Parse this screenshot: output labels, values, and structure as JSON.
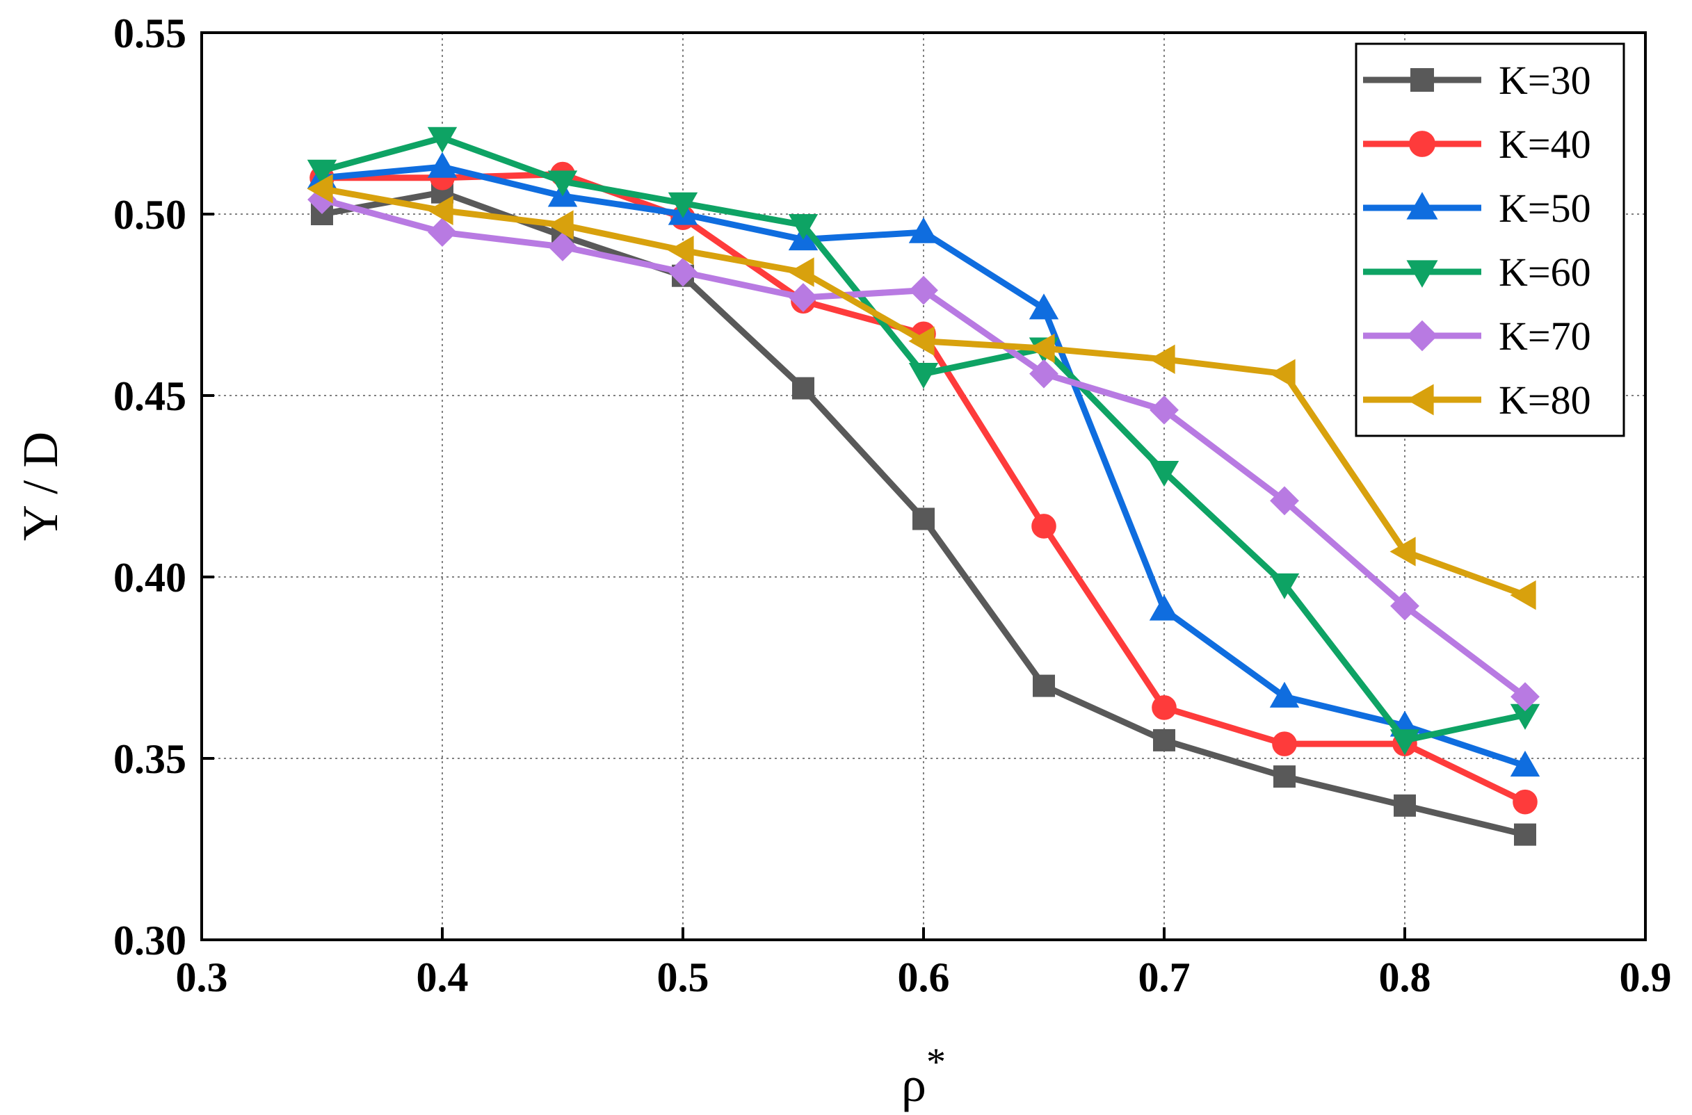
{
  "chart_data": {
    "type": "line",
    "title": "",
    "xlabel": "ρ",
    "xlabel_superscript": "*",
    "ylabel": "Y / D",
    "xlim": [
      0.3,
      0.9
    ],
    "ylim": [
      0.3,
      0.55
    ],
    "xticks": [
      0.3,
      0.4,
      0.5,
      0.6,
      0.7,
      0.8,
      0.9
    ],
    "xtick_labels": [
      "0.3",
      "0.4",
      "0.5",
      "0.6",
      "0.7",
      "0.8",
      "0.9"
    ],
    "yticks": [
      0.3,
      0.35,
      0.4,
      0.45,
      0.5,
      0.55
    ],
    "ytick_labels": [
      "0.30",
      "0.35",
      "0.40",
      "0.45",
      "0.50",
      "0.55"
    ],
    "grid": true,
    "legend_position": "top-right",
    "x": [
      0.35,
      0.4,
      0.45,
      0.5,
      0.55,
      0.6,
      0.65,
      0.7,
      0.75,
      0.8,
      0.85
    ],
    "series": [
      {
        "name": "K=30",
        "color": "#595959",
        "marker": "square",
        "values": [
          0.5,
          0.506,
          0.494,
          0.483,
          0.452,
          0.416,
          0.37,
          0.355,
          0.345,
          0.337,
          0.329
        ]
      },
      {
        "name": "K=40",
        "color": "#fe3b3b",
        "marker": "circle",
        "values": [
          0.51,
          0.51,
          0.511,
          0.499,
          0.476,
          0.467,
          0.414,
          0.364,
          0.354,
          0.354,
          0.338
        ]
      },
      {
        "name": "K=50",
        "color": "#0f6ddf",
        "marker": "triangle-up",
        "values": [
          0.51,
          0.513,
          0.505,
          0.5,
          0.493,
          0.495,
          0.474,
          0.391,
          0.367,
          0.359,
          0.348
        ]
      },
      {
        "name": "K=60",
        "color": "#0ea364",
        "marker": "triangle-down",
        "values": [
          0.512,
          0.521,
          0.509,
          0.503,
          0.497,
          0.456,
          0.463,
          0.429,
          0.398,
          0.355,
          0.362
        ]
      },
      {
        "name": "K=70",
        "color": "#b87ae2",
        "marker": "diamond",
        "values": [
          0.504,
          0.495,
          0.491,
          0.484,
          0.477,
          0.479,
          0.456,
          0.446,
          0.421,
          0.392,
          0.367
        ]
      },
      {
        "name": "K=80",
        "color": "#d8a10d",
        "marker": "triangle-left",
        "values": [
          0.507,
          0.501,
          0.497,
          0.49,
          0.484,
          0.465,
          0.463,
          0.46,
          0.456,
          0.407,
          0.395
        ]
      }
    ]
  }
}
